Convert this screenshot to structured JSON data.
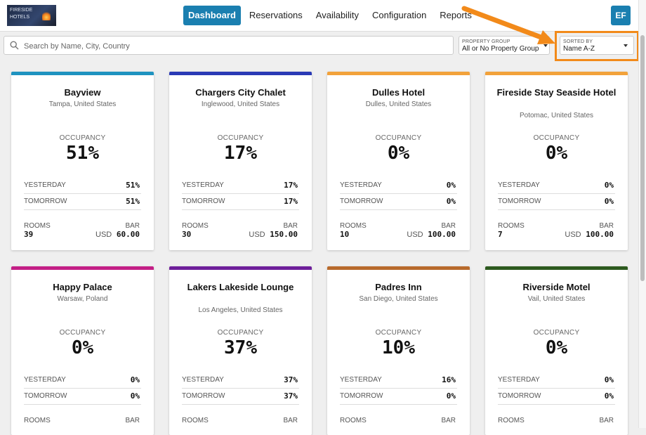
{
  "brand": {
    "logo_text_line1": "FIRESIDE",
    "logo_text_line2": "HOTELS"
  },
  "nav": {
    "items": [
      {
        "label": "Dashboard",
        "active": true
      },
      {
        "label": "Reservations",
        "active": false
      },
      {
        "label": "Availability",
        "active": false
      },
      {
        "label": "Configuration",
        "active": false
      },
      {
        "label": "Reports",
        "active": false
      }
    ],
    "avatar": "EF"
  },
  "filters": {
    "search_placeholder": "Search by Name, City, Country",
    "property_group": {
      "label": "PROPERTY GROUP",
      "value": "All or No Property Group"
    },
    "sort": {
      "label": "SORTED BY",
      "value": "Name A-Z"
    }
  },
  "labels": {
    "occupancy": "OCCUPANCY",
    "yesterday": "YESTERDAY",
    "tomorrow": "TOMORROW",
    "rooms": "ROOMS",
    "bar": "BAR"
  },
  "properties": [
    {
      "name": "Bayview",
      "location": "Tampa, United States",
      "color": "#1f93c0",
      "occupancy": "51%",
      "yesterday": "51%",
      "tomorrow": "51%",
      "rooms": "39",
      "currency": "USD",
      "bar": "60.00"
    },
    {
      "name": "Chargers City Chalet",
      "location": "Inglewood, United States",
      "color": "#2a3ab5",
      "occupancy": "17%",
      "yesterday": "17%",
      "tomorrow": "17%",
      "rooms": "30",
      "currency": "USD",
      "bar": "150.00"
    },
    {
      "name": "Dulles Hotel",
      "location": "Dulles, United States",
      "color": "#f2a23b",
      "occupancy": "0%",
      "yesterday": "0%",
      "tomorrow": "0%",
      "rooms": "10",
      "currency": "USD",
      "bar": "100.00"
    },
    {
      "name": "Fireside Stay Seaside Hotel",
      "location": "Potomac, United States",
      "color": "#f2a23b",
      "occupancy": "0%",
      "yesterday": "0%",
      "tomorrow": "0%",
      "rooms": "7",
      "currency": "USD",
      "bar": "100.00"
    },
    {
      "name": "Happy Palace",
      "location": "Warsaw, Poland",
      "color": "#c31f86",
      "occupancy": "0%",
      "yesterday": "0%",
      "tomorrow": "0%",
      "rooms": "",
      "currency": "",
      "bar": ""
    },
    {
      "name": "Lakers Lakeside Lounge",
      "location": "Los Angeles, United States",
      "color": "#6e1f9a",
      "occupancy": "37%",
      "yesterday": "37%",
      "tomorrow": "37%",
      "rooms": "",
      "currency": "",
      "bar": ""
    },
    {
      "name": "Padres Inn",
      "location": "San Diego, United States",
      "color": "#b86a2c",
      "occupancy": "10%",
      "yesterday": "16%",
      "tomorrow": "0%",
      "rooms": "",
      "currency": "",
      "bar": ""
    },
    {
      "name": "Riverside Motel",
      "location": "Vail, United States",
      "color": "#2d5a1f",
      "occupancy": "0%",
      "yesterday": "0%",
      "tomorrow": "0%",
      "rooms": "",
      "currency": "",
      "bar": ""
    }
  ]
}
